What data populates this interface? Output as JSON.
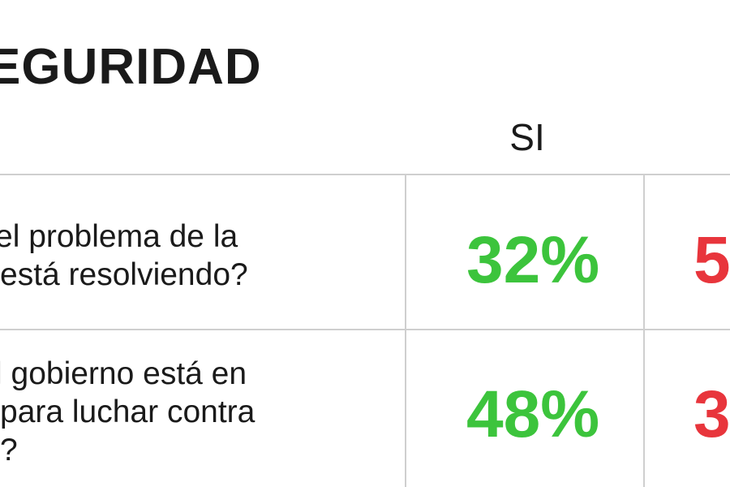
{
  "title": "EGURIDAD",
  "columns": {
    "si": "SI",
    "no": ""
  },
  "rows": [
    {
      "question": "el problema de la\nestá resolviendo?",
      "si": "32%",
      "no": "5"
    },
    {
      "question": "l gobierno está en\npara luchar contra\n?",
      "si": "48%",
      "no": "3"
    }
  ],
  "colors": {
    "si": "#3cc43c",
    "no": "#e8353c",
    "text": "#1a1a1a",
    "rule": "#cfcfcf"
  },
  "chart_data": {
    "type": "table",
    "title": "EGURIDAD",
    "columns": [
      "SI",
      ""
    ],
    "rows": [
      {
        "label": "el problema de la está resolviendo?",
        "values": [
          "32%",
          "5"
        ]
      },
      {
        "label": "l gobierno está en para luchar contra ?",
        "values": [
          "48%",
          "3"
        ]
      }
    ]
  }
}
